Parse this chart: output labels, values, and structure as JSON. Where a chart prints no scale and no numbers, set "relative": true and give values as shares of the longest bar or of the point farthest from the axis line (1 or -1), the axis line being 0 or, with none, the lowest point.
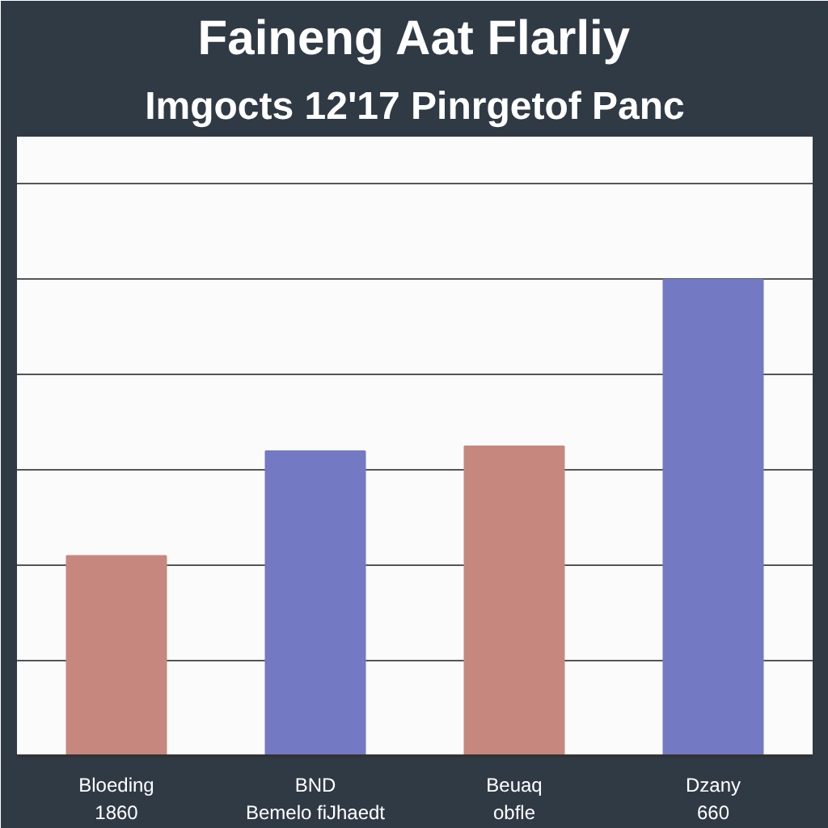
{
  "chart_data": {
    "type": "bar",
    "title": "Faineng Aat Flarliy",
    "subtitle": "Imgocts 12'17 Pinrgetof Panc",
    "categories": [
      "Bloeding 1860",
      "BND Bemelo fiJhaedt",
      "Beuaq obfle",
      "Dzany 660"
    ],
    "values": [
      0.42,
      0.64,
      0.65,
      1.0
    ],
    "colors": [
      "#c6877e",
      "#7479c3",
      "#c6877e",
      "#7479c3"
    ],
    "relative": true,
    "grid": "y"
  }
}
